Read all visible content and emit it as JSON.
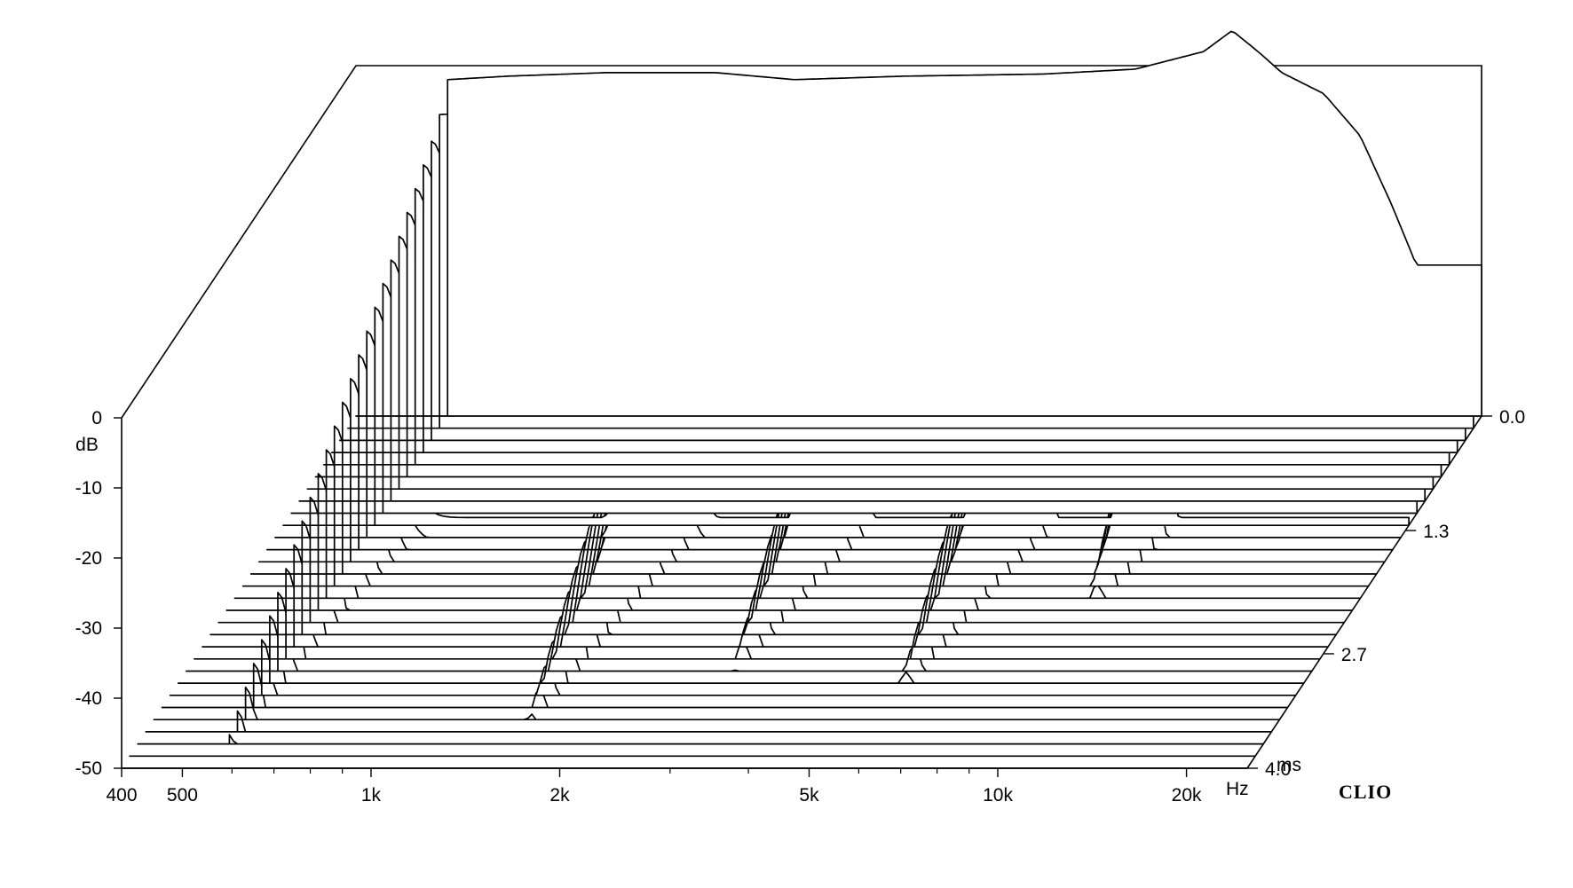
{
  "chart_data": {
    "type": "waterfall",
    "brand": "CLIO",
    "x_axis": {
      "scale": "log",
      "range": [
        400,
        25000
      ],
      "ticks": [
        {
          "value": 400,
          "label": "400"
        },
        {
          "value": 500,
          "label": "500"
        },
        {
          "value": 1000,
          "label": "1k"
        },
        {
          "value": 2000,
          "label": "2k"
        },
        {
          "value": 5000,
          "label": "5k"
        },
        {
          "value": 10000,
          "label": "10k"
        },
        {
          "value": 20000,
          "label": "20k"
        }
      ],
      "minor_ticks": [
        600,
        700,
        800,
        900,
        3000,
        4000,
        6000,
        7000,
        8000,
        9000
      ],
      "unit": "Hz"
    },
    "y_axis": {
      "range": [
        -50,
        0
      ],
      "ticks": [
        {
          "value": 0,
          "label": "0"
        },
        {
          "value": -10,
          "label": "-10"
        },
        {
          "value": -20,
          "label": "-20"
        },
        {
          "value": -30,
          "label": "-30"
        },
        {
          "value": -40,
          "label": "-40"
        },
        {
          "value": -50,
          "label": "-50"
        }
      ],
      "unit": "dB"
    },
    "z_axis": {
      "range": [
        0.0,
        4.0
      ],
      "ticks": [
        {
          "value": 0.0,
          "label": "0.0"
        },
        {
          "value": 1.3,
          "label": "1.3"
        },
        {
          "value": 2.7,
          "label": "2.7"
        },
        {
          "value": 4.0,
          "label": "4.0"
        }
      ],
      "unit": "ms"
    },
    "slice_count": 30,
    "slice_times_ms": [
      0.0,
      0.138,
      0.276,
      0.414,
      0.552,
      0.69,
      0.828,
      0.966,
      1.103,
      1.241,
      1.379,
      1.517,
      1.655,
      1.793,
      1.931,
      2.069,
      2.207,
      2.345,
      2.483,
      2.621,
      2.759,
      2.897,
      3.034,
      3.172,
      3.31,
      3.448,
      3.586,
      3.724,
      3.862,
      4.0
    ],
    "initial_response_db": [
      [
        560,
        -2
      ],
      [
        700,
        -1.5
      ],
      [
        1000,
        -1
      ],
      [
        1500,
        -1
      ],
      [
        2000,
        -2
      ],
      [
        3000,
        -1.5
      ],
      [
        5000,
        -1.2
      ],
      [
        7000,
        -0.5
      ],
      [
        9000,
        2
      ],
      [
        10000,
        5
      ],
      [
        11000,
        2
      ],
      [
        12000,
        -1
      ],
      [
        14000,
        -4
      ],
      [
        16000,
        -10
      ],
      [
        18000,
        -20
      ],
      [
        20000,
        -30
      ],
      [
        22000,
        -45
      ]
    ],
    "decay_resonances": [
      {
        "freq_hz": 560,
        "decay_ms": 4.0
      },
      {
        "freq_hz": 1600,
        "decay_ms": 3.6
      },
      {
        "freq_hz": 3000,
        "decay_ms": 3.0
      },
      {
        "freq_hz": 5800,
        "decay_ms": 3.2
      },
      {
        "freq_hz": 9500,
        "decay_ms": 2.0
      },
      {
        "freq_hz": 16500,
        "decay_ms": 1.6
      },
      {
        "freq_hz": 20000,
        "decay_ms": 1.1
      }
    ]
  }
}
